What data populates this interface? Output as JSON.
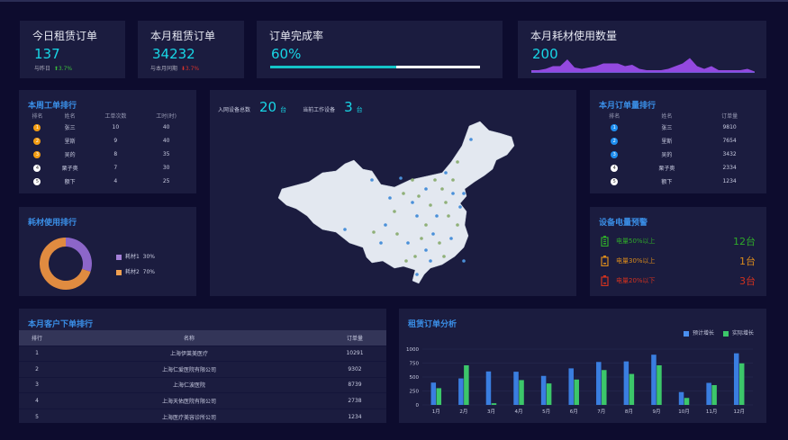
{
  "cards": [
    {
      "title": "今日租赁订单",
      "value": "137",
      "compare_label": "与昨日",
      "change": "3.7%",
      "trend": "up"
    },
    {
      "title": "本月租赁订单",
      "value": "34232",
      "compare_label": "与本月同期",
      "change": "3.7%",
      "trend": "down"
    },
    {
      "title": "订单完成率",
      "value": "60%",
      "progress": 0.6
    },
    {
      "title": "本月耗材使用数量",
      "value": "200",
      "sparkline": [
        2,
        2,
        3,
        5,
        5,
        10,
        4,
        3,
        4,
        5,
        7,
        7,
        7,
        5,
        6,
        3,
        2,
        2,
        2,
        3,
        5,
        7,
        11,
        5,
        3,
        5,
        2,
        2,
        2,
        2,
        3,
        1
      ]
    }
  ],
  "weekly": {
    "title": "本周工单排行",
    "headers": [
      "排名",
      "姓名",
      "工单次数",
      "工时(时)"
    ],
    "rows": [
      [
        "1",
        "张三",
        "10",
        "40"
      ],
      [
        "2",
        "里斯",
        "9",
        "40"
      ],
      [
        "3",
        "吴的",
        "8",
        "35"
      ],
      [
        "4",
        "栗子奥",
        "7",
        "30"
      ],
      [
        "5",
        "额下",
        "4",
        "25"
      ]
    ]
  },
  "map": {
    "total_label": "入网设备总数",
    "total": "20",
    "unit": "台",
    "working_label": "当前工作设备",
    "working": "3"
  },
  "monthly": {
    "title": "本月订单量排行",
    "headers": [
      "排名",
      "姓名",
      "订单量"
    ],
    "rows": [
      [
        "1",
        "张三",
        "9810"
      ],
      [
        "2",
        "里斯",
        "7654"
      ],
      [
        "3",
        "吴的",
        "3432"
      ],
      [
        "4",
        "栗子奥",
        "2334"
      ],
      [
        "5",
        "额下",
        "1234"
      ]
    ]
  },
  "consumable": {
    "title": "耗材使用排行",
    "items": [
      {
        "name": "耗材1",
        "pct": "30%",
        "value": 30,
        "color": "#8c66c9"
      },
      {
        "name": "耗材2",
        "pct": "70%",
        "value": 70,
        "color": "#e08b40"
      }
    ]
  },
  "battery": {
    "title": "设备电量预警",
    "items": [
      {
        "label": "电量50%以上",
        "count": "12台",
        "color": "#2fa82a"
      },
      {
        "label": "电量30%以上",
        "count": "1台",
        "color": "#d98a1c"
      },
      {
        "label": "电量20%以下",
        "count": "3台",
        "color": "#d0321f"
      }
    ]
  },
  "customers": {
    "title": "本月客户下单排行",
    "headers": [
      "排行",
      "名称",
      "订单量"
    ],
    "rows": [
      [
        "1",
        "上海伊莱美医疗",
        "10291"
      ],
      [
        "2",
        "上海仁爱医院有限公司",
        "9302"
      ],
      [
        "3",
        "上海仁波医院",
        "8739"
      ],
      [
        "4",
        "上海天佑医院有限公司",
        "2738"
      ],
      [
        "5",
        "上海医疗美容诊所公司",
        "1234"
      ]
    ]
  },
  "chart_data": {
    "type": "bar",
    "title": "租赁订单分析",
    "categories": [
      "1月",
      "2月",
      "3月",
      "4月",
      "5月",
      "6月",
      "7月",
      "8月",
      "9月",
      "10月",
      "11月",
      "12月"
    ],
    "series": [
      {
        "name": "预计增长",
        "color": "#3a7ee0",
        "values": [
          400,
          475,
          600,
          595,
          520,
          655,
          770,
          780,
          900,
          230,
          395,
          925
        ]
      },
      {
        "name": "实际增长",
        "color": "#3cc76a",
        "values": [
          300,
          710,
          30,
          445,
          385,
          455,
          625,
          555,
          710,
          125,
          355,
          745
        ]
      }
    ],
    "yticks": [
      0,
      250,
      500,
      750,
      1000
    ],
    "ylim": [
      0,
      1000
    ],
    "grid": true,
    "legend": "top-right"
  }
}
